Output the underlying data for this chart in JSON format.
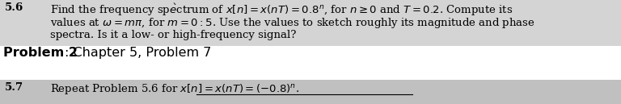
{
  "problem1_number": "5.6",
  "problem2_bold": "Problem 2",
  "problem2_rest": ": Chapter 5, Problem 7",
  "problem3_number": "5.7",
  "bg_color_top": "#d8d8d8",
  "bg_color_middle": "#ffffff",
  "bg_color_bottom": "#c8c8c8",
  "text_color": "#000000",
  "font_size_main": 9.5,
  "font_size_problem": 11.5,
  "line1": "Find the frequency spèctrum of x[n] = x(nT) = 0.8\", for n ≥ 0 and T = 0.2. Compute its",
  "line2": "values at ω = mπ, for m = 0 : 5. Use the values to sketch roughly its magnitude and phase",
  "line3": "spectra. Is it a low- or high-frequency signal?",
  "line4": "Repeat Problem 5.6 for x[n] = x(nT) = (−0.8)\"."
}
